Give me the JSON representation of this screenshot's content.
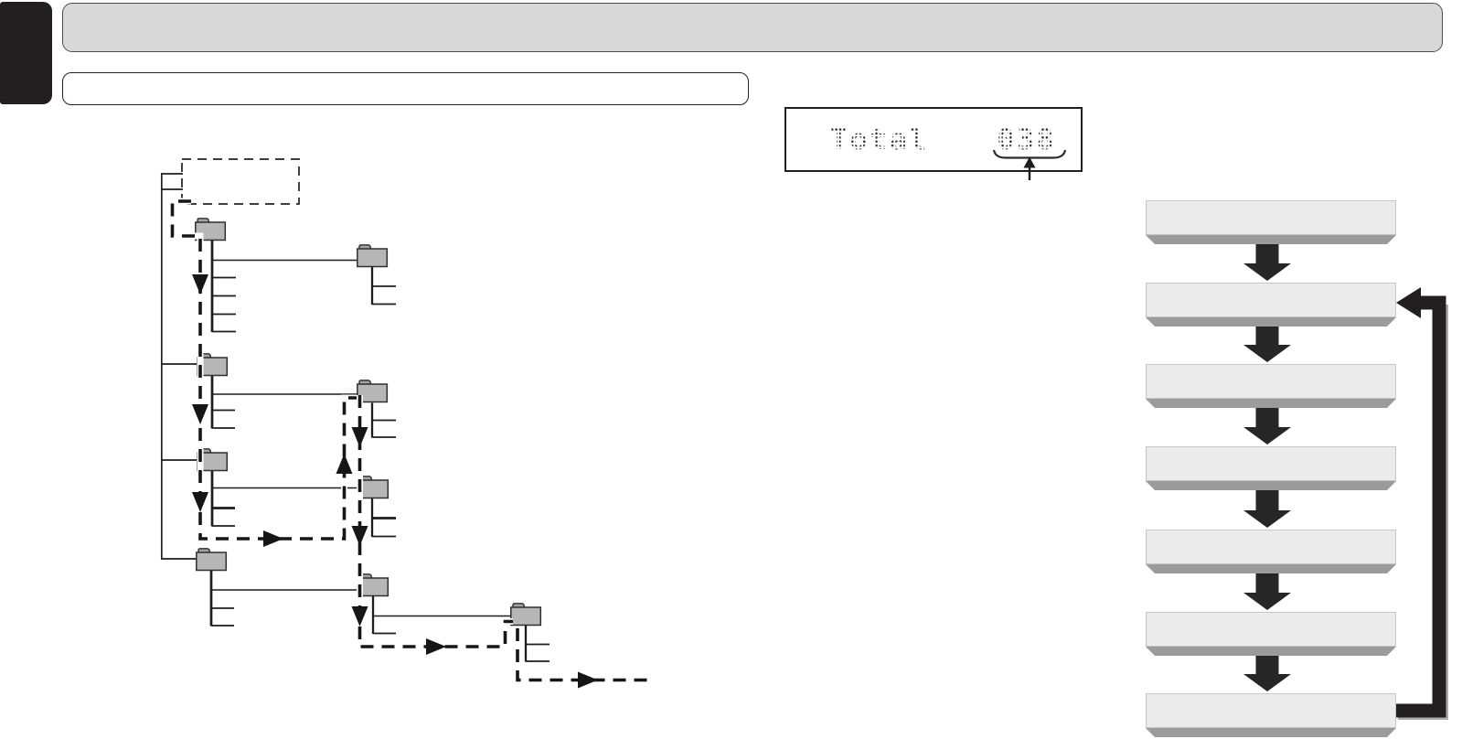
{
  "header": {
    "section_banner_text": "",
    "subsection_box_text": ""
  },
  "lcd_display": {
    "label": "Total",
    "value": "038"
  },
  "folder_tree": {
    "root": {
      "style": "dashed-box",
      "connector_ticks": 2
    },
    "folders": [
      {
        "id": "folder-1",
        "level": 1,
        "files": 4,
        "subfolders": [
          "folder-1a"
        ]
      },
      {
        "id": "folder-1a",
        "level": 2,
        "files": 2,
        "subfolders": []
      },
      {
        "id": "folder-2",
        "level": 1,
        "files": 2,
        "subfolders": [
          "folder-2a"
        ]
      },
      {
        "id": "folder-2a",
        "level": 2,
        "files": 2,
        "subfolders": []
      },
      {
        "id": "folder-3",
        "level": 1,
        "files": 2,
        "subfolders": [
          "folder-3a"
        ]
      },
      {
        "id": "folder-3a",
        "level": 2,
        "files": 2,
        "subfolders": []
      },
      {
        "id": "folder-4",
        "level": 1,
        "files": 2,
        "subfolders": [
          "folder-4a"
        ]
      },
      {
        "id": "folder-4a",
        "level": 2,
        "files": 1,
        "subfolders": [
          "folder-4a1"
        ]
      },
      {
        "id": "folder-4a1",
        "level": 3,
        "files": 2,
        "subfolders": []
      }
    ],
    "play_order": [
      "root",
      "folder-1",
      "folder-2",
      "folder-3",
      "folder-2a",
      "folder-3a",
      "folder-4a",
      "folder-4a1",
      "continues-off-page"
    ]
  },
  "flowchart": {
    "steps": [
      "",
      "",
      "",
      "",
      "",
      "",
      ""
    ],
    "loop": "last-step-returns-to-second-step"
  },
  "colors": {
    "banner_fill": "#d8d8d8",
    "edge_tab_fill": "#231f20",
    "flow_box_fill": "#ebebeb",
    "flow_box_edge": "#9b9b9b",
    "folder_fill": "#b7b7b7",
    "line_color": "#1d1d1d"
  }
}
